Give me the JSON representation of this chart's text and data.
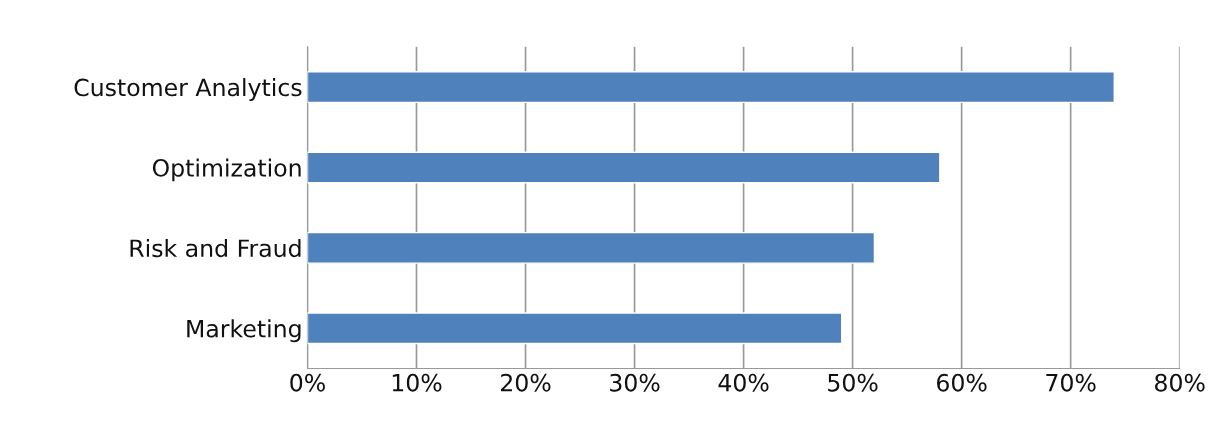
{
  "chart_data": {
    "type": "bar",
    "orientation": "horizontal",
    "categories": [
      "Customer Analytics",
      "Optimization",
      "Risk and Fraud",
      "Marketing"
    ],
    "values": [
      74,
      58,
      52,
      49
    ],
    "color": "#4f81bd",
    "xlim": [
      0,
      80
    ],
    "xticks": [
      {
        "value": 0,
        "label": "0%"
      },
      {
        "value": 10,
        "label": "10%"
      },
      {
        "value": 20,
        "label": "20%"
      },
      {
        "value": 30,
        "label": "30%"
      },
      {
        "value": 40,
        "label": "40%"
      },
      {
        "value": 50,
        "label": "50%"
      },
      {
        "value": 60,
        "label": "60%"
      },
      {
        "value": 70,
        "label": "70%"
      },
      {
        "value": 80,
        "label": "80%"
      }
    ],
    "grid": "x"
  }
}
